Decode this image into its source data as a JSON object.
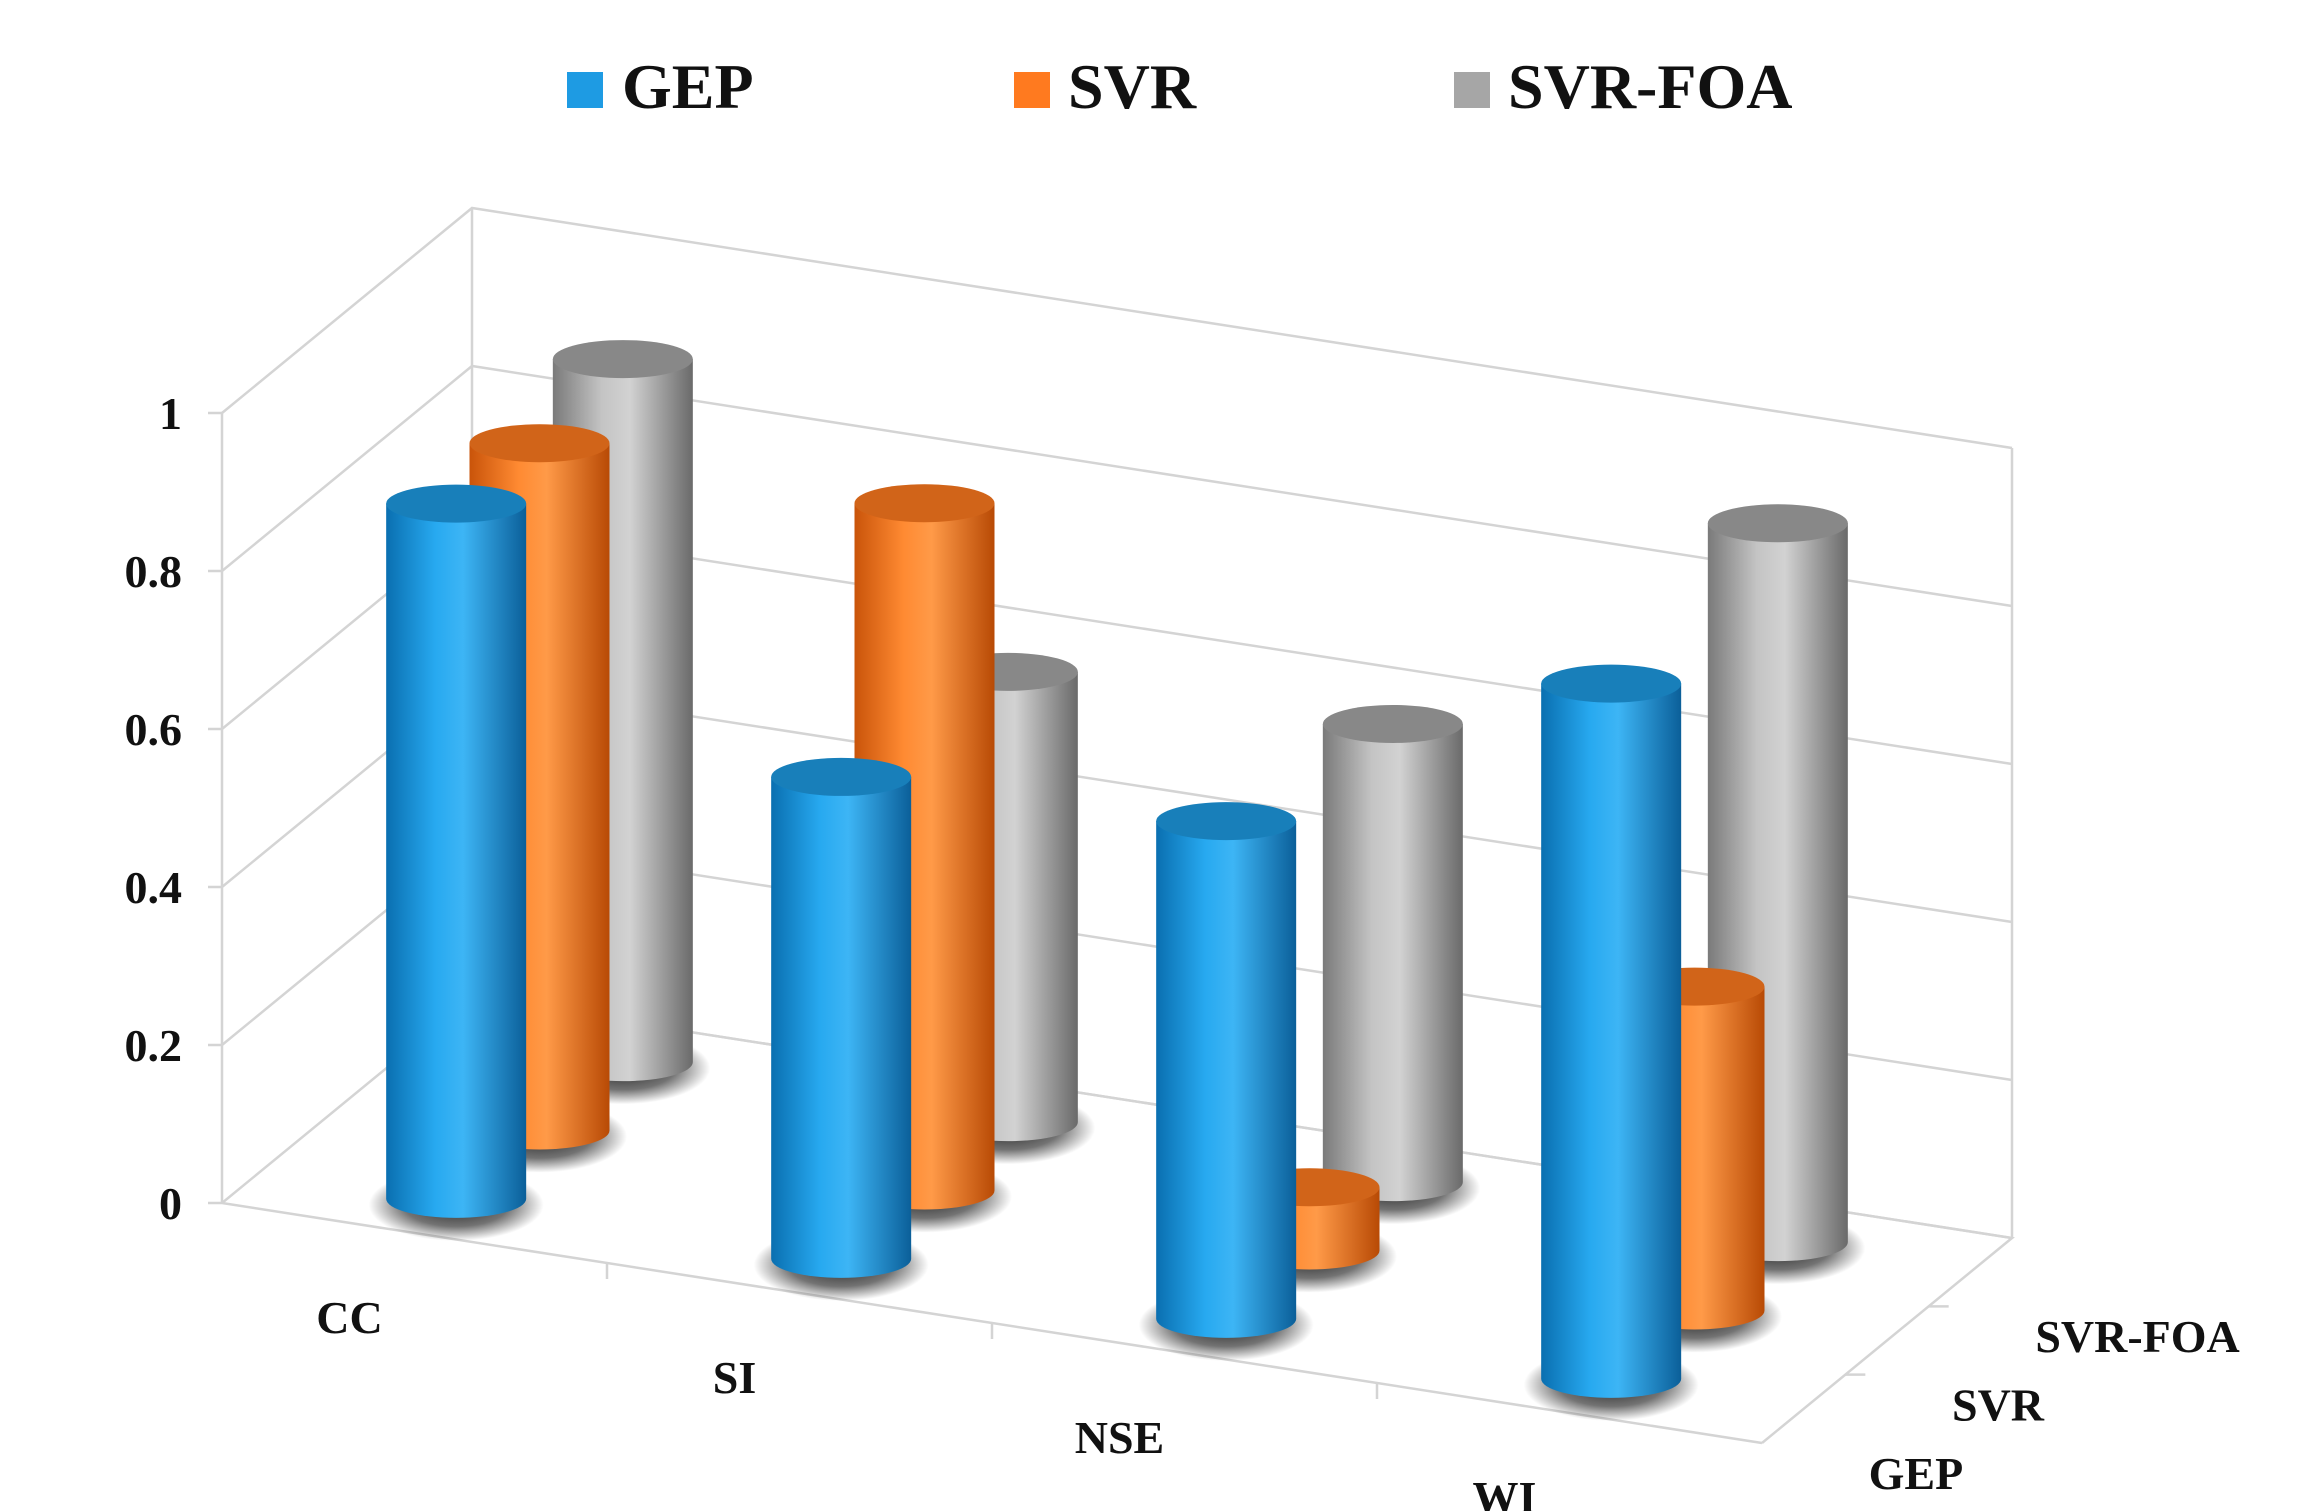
{
  "chart_data": {
    "type": "bar",
    "style": "3d-cylinder",
    "title": "",
    "categories": [
      "CC",
      "SI",
      "NSE",
      "WI"
    ],
    "series": [
      {
        "name": "GEP",
        "values": [
          0.88,
          0.61,
          0.63,
          0.88
        ],
        "color": "#1e9be3"
      },
      {
        "name": "SVR",
        "values": [
          0.87,
          0.87,
          0.08,
          0.41
        ],
        "color": "#ff7a1f"
      },
      {
        "name": "SVR-FOA",
        "values": [
          0.89,
          0.57,
          0.58,
          0.91
        ],
        "color": "#a6a6a6"
      }
    ],
    "ylim": [
      0,
      1
    ],
    "yticks": [
      "0",
      "0.2",
      "0.4",
      "0.6",
      "0.8",
      "1"
    ],
    "depth_labels": [
      "GEP",
      "SVR",
      "SVR-FOA"
    ],
    "legend": {
      "position": "top",
      "entries": [
        "GEP",
        "SVR",
        "SVR-FOA"
      ]
    },
    "grid": true
  }
}
